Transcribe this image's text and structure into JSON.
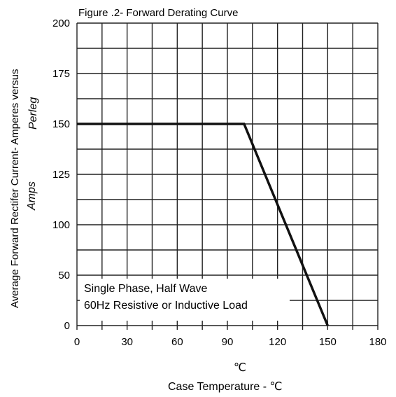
{
  "chart_data": {
    "type": "line",
    "title": "Figure .2- Forward Derating Curve",
    "ylabel_lines": [
      "Average Forward Rectifer Current- Amperes versus",
      "Perleg",
      "Amps"
    ],
    "xlabel": "Case Temperature  -  ℃",
    "x_unit_label": "℃",
    "annotation": [
      "Single Phase, Half Wave",
      "60Hz  Resistive or Inductive Load"
    ],
    "x_ticks": [
      0,
      30,
      60,
      90,
      120,
      150,
      180
    ],
    "y_ticks": [
      0,
      50,
      100,
      125,
      150,
      175,
      200
    ],
    "grid": true,
    "series": [
      {
        "x": [
          0,
          100,
          150
        ],
        "y": [
          150,
          150,
          0
        ]
      }
    ]
  }
}
